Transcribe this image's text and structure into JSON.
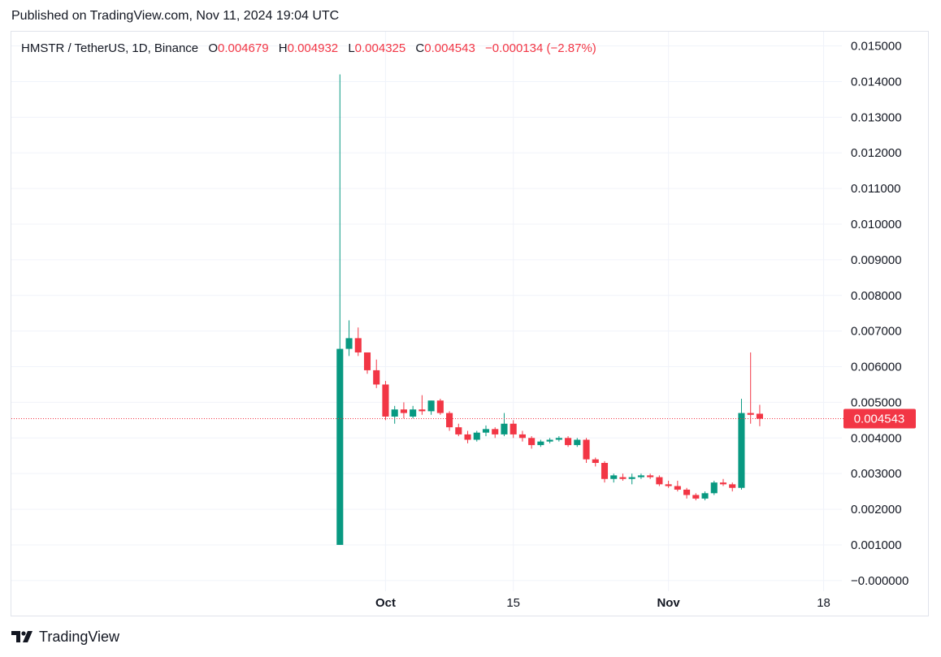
{
  "header": {
    "published": "Published on TradingView.com, Nov 11, 2024 19:04 UTC"
  },
  "legend": {
    "symbol": "HMSTR / TetherUS, 1D, Binance",
    "o_label": "O",
    "o_value": "0.004679",
    "h_label": "H",
    "h_value": "0.004932",
    "l_label": "L",
    "l_value": "0.004325",
    "c_label": "C",
    "c_value": "0.004543",
    "change": "−0.000134 (−2.87%)"
  },
  "price_badge": "0.004543",
  "footer": {
    "brand": "TradingView"
  },
  "colors": {
    "up": "#089981",
    "down": "#f23645",
    "grid": "#f0f3fa",
    "text": "#131722",
    "last_line": "#f23645"
  },
  "chart_data": {
    "type": "candlestick",
    "title": "HMSTR / TetherUS, 1D, Binance",
    "y_ticks": [
      "0.015000",
      "0.014000",
      "0.013000",
      "0.012000",
      "0.011000",
      "0.010000",
      "0.009000",
      "0.008000",
      "0.007000",
      "0.006000",
      "0.005000",
      "0.004000",
      "0.003000",
      "0.002000",
      "0.001000",
      "−0.000000"
    ],
    "ylim": [
      -0.0003,
      0.0154
    ],
    "x_ticks": [
      {
        "label": "Oct",
        "date": "2024-10-01",
        "bold": true
      },
      {
        "label": "15",
        "date": "2024-10-15",
        "bold": false
      },
      {
        "label": "Nov",
        "date": "2024-11-01",
        "bold": true
      },
      {
        "label": "18",
        "date": "2024-11-18",
        "bold": false
      }
    ],
    "xlim": [
      "2024-08-21",
      "2024-11-20"
    ],
    "last_price": 0.004543,
    "candles": [
      {
        "date": "2024-09-26",
        "o": 0.001,
        "h": 0.0142,
        "l": 0.001,
        "c": 0.0065
      },
      {
        "date": "2024-09-27",
        "o": 0.0065,
        "h": 0.0073,
        "l": 0.0063,
        "c": 0.0068
      },
      {
        "date": "2024-09-28",
        "o": 0.0068,
        "h": 0.0071,
        "l": 0.0063,
        "c": 0.0064
      },
      {
        "date": "2024-09-29",
        "o": 0.0064,
        "h": 0.0064,
        "l": 0.0058,
        "c": 0.0059
      },
      {
        "date": "2024-09-30",
        "o": 0.0059,
        "h": 0.0062,
        "l": 0.0054,
        "c": 0.0055
      },
      {
        "date": "2024-10-01",
        "o": 0.0055,
        "h": 0.0056,
        "l": 0.0045,
        "c": 0.0046
      },
      {
        "date": "2024-10-02",
        "o": 0.0046,
        "h": 0.0049,
        "l": 0.0044,
        "c": 0.0048
      },
      {
        "date": "2024-10-03",
        "o": 0.0048,
        "h": 0.005,
        "l": 0.00455,
        "c": 0.0047
      },
      {
        "date": "2024-10-04",
        "o": 0.0046,
        "h": 0.0049,
        "l": 0.00455,
        "c": 0.0048
      },
      {
        "date": "2024-10-05",
        "o": 0.0048,
        "h": 0.0052,
        "l": 0.00465,
        "c": 0.00475
      },
      {
        "date": "2024-10-06",
        "o": 0.00475,
        "h": 0.00505,
        "l": 0.00465,
        "c": 0.00505
      },
      {
        "date": "2024-10-07",
        "o": 0.00505,
        "h": 0.0051,
        "l": 0.00465,
        "c": 0.0047
      },
      {
        "date": "2024-10-08",
        "o": 0.0047,
        "h": 0.00475,
        "l": 0.0042,
        "c": 0.0043
      },
      {
        "date": "2024-10-09",
        "o": 0.0043,
        "h": 0.0044,
        "l": 0.00405,
        "c": 0.0041
      },
      {
        "date": "2024-10-10",
        "o": 0.0041,
        "h": 0.0042,
        "l": 0.00385,
        "c": 0.00395
      },
      {
        "date": "2024-10-11",
        "o": 0.00395,
        "h": 0.0042,
        "l": 0.0039,
        "c": 0.00415
      },
      {
        "date": "2024-10-12",
        "o": 0.00415,
        "h": 0.00435,
        "l": 0.00405,
        "c": 0.00425
      },
      {
        "date": "2024-10-13",
        "o": 0.00425,
        "h": 0.0043,
        "l": 0.004,
        "c": 0.0041
      },
      {
        "date": "2024-10-14",
        "o": 0.0041,
        "h": 0.0047,
        "l": 0.00405,
        "c": 0.0044
      },
      {
        "date": "2024-10-15",
        "o": 0.0044,
        "h": 0.0045,
        "l": 0.004,
        "c": 0.0041
      },
      {
        "date": "2024-10-16",
        "o": 0.0041,
        "h": 0.0042,
        "l": 0.0039,
        "c": 0.004
      },
      {
        "date": "2024-10-17",
        "o": 0.004,
        "h": 0.00405,
        "l": 0.0037,
        "c": 0.0038
      },
      {
        "date": "2024-10-18",
        "o": 0.0038,
        "h": 0.00395,
        "l": 0.00375,
        "c": 0.0039
      },
      {
        "date": "2024-10-19",
        "o": 0.0039,
        "h": 0.004,
        "l": 0.00385,
        "c": 0.00395
      },
      {
        "date": "2024-10-20",
        "o": 0.00395,
        "h": 0.00405,
        "l": 0.0039,
        "c": 0.004
      },
      {
        "date": "2024-10-21",
        "o": 0.004,
        "h": 0.00405,
        "l": 0.00375,
        "c": 0.0038
      },
      {
        "date": "2024-10-22",
        "o": 0.0038,
        "h": 0.004,
        "l": 0.00375,
        "c": 0.00395
      },
      {
        "date": "2024-10-23",
        "o": 0.00395,
        "h": 0.004,
        "l": 0.0033,
        "c": 0.0034
      },
      {
        "date": "2024-10-24",
        "o": 0.0034,
        "h": 0.00345,
        "l": 0.0032,
        "c": 0.0033
      },
      {
        "date": "2024-10-25",
        "o": 0.0033,
        "h": 0.00335,
        "l": 0.00275,
        "c": 0.00285
      },
      {
        "date": "2024-10-26",
        "o": 0.00285,
        "h": 0.003,
        "l": 0.00275,
        "c": 0.00295
      },
      {
        "date": "2024-10-27",
        "o": 0.0029,
        "h": 0.003,
        "l": 0.0028,
        "c": 0.00285
      },
      {
        "date": "2024-10-28",
        "o": 0.00285,
        "h": 0.003,
        "l": 0.0027,
        "c": 0.0029
      },
      {
        "date": "2024-10-29",
        "o": 0.0029,
        "h": 0.003,
        "l": 0.00285,
        "c": 0.00295
      },
      {
        "date": "2024-10-30",
        "o": 0.00295,
        "h": 0.003,
        "l": 0.00285,
        "c": 0.0029
      },
      {
        "date": "2024-10-31",
        "o": 0.0029,
        "h": 0.00295,
        "l": 0.00265,
        "c": 0.0027
      },
      {
        "date": "2024-11-01",
        "o": 0.0027,
        "h": 0.0028,
        "l": 0.0026,
        "c": 0.00265
      },
      {
        "date": "2024-11-02",
        "o": 0.00265,
        "h": 0.0028,
        "l": 0.0025,
        "c": 0.00255
      },
      {
        "date": "2024-11-03",
        "o": 0.00255,
        "h": 0.0026,
        "l": 0.0023,
        "c": 0.0024
      },
      {
        "date": "2024-11-04",
        "o": 0.0024,
        "h": 0.00245,
        "l": 0.00225,
        "c": 0.0023
      },
      {
        "date": "2024-11-05",
        "o": 0.0023,
        "h": 0.0025,
        "l": 0.00225,
        "c": 0.00245
      },
      {
        "date": "2024-11-06",
        "o": 0.00245,
        "h": 0.0028,
        "l": 0.0024,
        "c": 0.00275
      },
      {
        "date": "2024-11-07",
        "o": 0.00275,
        "h": 0.00285,
        "l": 0.00265,
        "c": 0.0027
      },
      {
        "date": "2024-11-08",
        "o": 0.0027,
        "h": 0.00275,
        "l": 0.0025,
        "c": 0.0026
      },
      {
        "date": "2024-11-09",
        "o": 0.0026,
        "h": 0.0051,
        "l": 0.00255,
        "c": 0.0047
      },
      {
        "date": "2024-11-10",
        "o": 0.0047,
        "h": 0.0064,
        "l": 0.0044,
        "c": 0.00465
      },
      {
        "date": "2024-11-11",
        "o": 0.00468,
        "h": 0.00493,
        "l": 0.00433,
        "c": 0.00454
      }
    ]
  }
}
